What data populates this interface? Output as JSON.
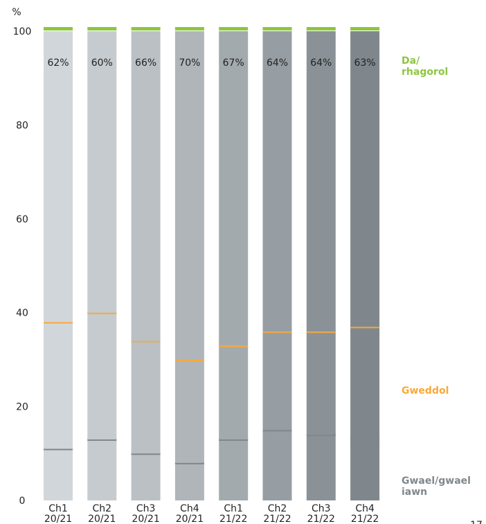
{
  "chart_data": {
    "type": "stacked_bar",
    "y_label": "%",
    "categories": [
      "Ch1 20/21",
      "Ch2 20/21",
      "Ch3 20/21",
      "Ch4 20/21",
      "Ch1 21/22",
      "Ch2 21/22",
      "Ch3 21/22",
      "Ch4 21/22"
    ],
    "bar_colors": [
      "#d1d6da",
      "#c6cbcf",
      "#bac0c4",
      "#afb5b9",
      "#a3aaae",
      "#979ea3",
      "#8b9297",
      "#7f878c"
    ],
    "series": [
      {
        "name": "Gwael/gwael iawn",
        "color": "#7f878c",
        "values": [
          11,
          13,
          10,
          8,
          13,
          15,
          14,
          13
        ]
      },
      {
        "name": "Gweddol",
        "color": "#f9a93b",
        "values": [
          27,
          27,
          24,
          22,
          20,
          21,
          22,
          24
        ]
      },
      {
        "name": "Da/ rhagorol",
        "color": "#8dc63f",
        "values": [
          62,
          60,
          66,
          70,
          67,
          64,
          64,
          63
        ],
        "value_labels": [
          "62%",
          "60%",
          "66%",
          "70%",
          "67%",
          "64%",
          "64%",
          "63%"
        ]
      }
    ],
    "ylim": [
      0,
      100
    ],
    "yticks": [
      0,
      20,
      40,
      60,
      80,
      100
    ],
    "page_number": "17"
  }
}
